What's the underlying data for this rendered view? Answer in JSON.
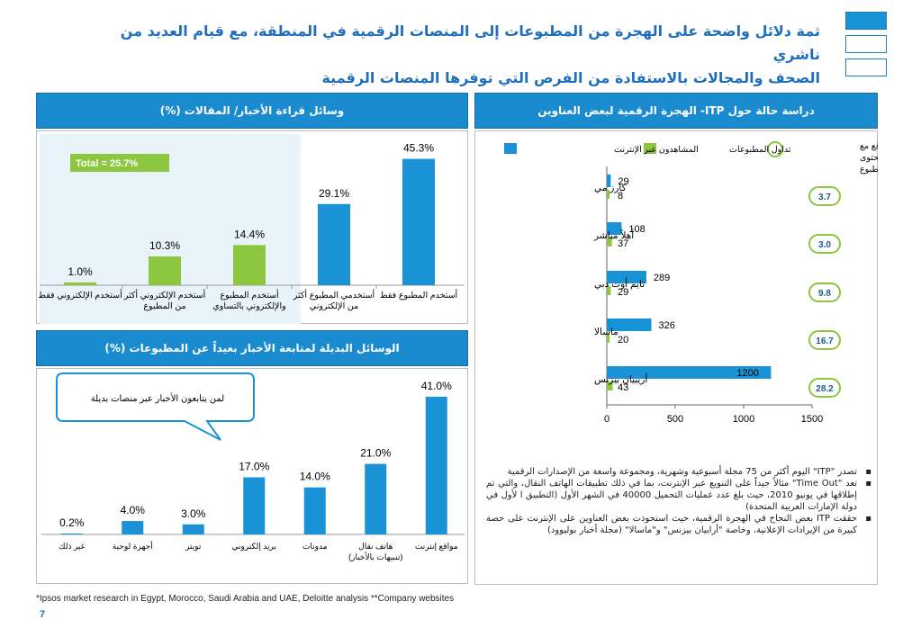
{
  "title": {
    "line1": "ثمة دلائل واضحة على الهجرة من المطبوعات إلى المنصات الرقمية في المنطقة، مع قيام العديد من ناشري",
    "line2": "الصحف والمجالات بالاستفادة من الفرص التي توفرها المنصات الرقمية"
  },
  "colors": {
    "blue": "#1a93d6",
    "green": "#8dc63f",
    "header": "#1a8bcf",
    "title": "#1f6fbd"
  },
  "panels": {
    "top_left_header": "وسائل قراءة الأخبار/ المقالات (%)",
    "bottom_left_header": "الوسائل البديلة لمتابعة الأخبار بعيداً عن المطبوعات (%)",
    "right_header": "دراسة حالة حول ITP- الهجرة الرقمية لبعض العناوين"
  },
  "chart_data": [
    {
      "type": "bar",
      "title": "وسائل قراءة الأخبار/ المقالات (%)",
      "categories": [
        "أستخدم الإلكتروني فقط",
        "أستخدم الإلكتروني أكثر من المطبوع",
        "أستخدم المطبوع والإلكتروني بالتساوي",
        "أستخدمي المطبوع أكثر من الإلكتروني",
        "أستخدم المطبوع فقط"
      ],
      "category_lines": [
        [
          "أستخدم الإلكتروني فقط"
        ],
        [
          "أستخدم الإلكتروني أكثر",
          "من المطبوع"
        ],
        [
          "أستخدم المطبوع",
          "والإلكتروني بالتساوي"
        ],
        [
          "أستخدمي المطبوع أكثر",
          "من الإلكتروني"
        ],
        [
          "أستخدم المطبوع فقط"
        ]
      ],
      "values": [
        1.0,
        10.3,
        14.4,
        29.1,
        45.3
      ],
      "value_labels": [
        "1.0%",
        "10.3%",
        "14.4%",
        "29.1%",
        "45.3%"
      ],
      "bar_colors": [
        "green",
        "green",
        "green",
        "blue",
        "blue"
      ],
      "annotation": "Total = 25.7%",
      "ylim": [
        0,
        50
      ]
    },
    {
      "type": "bar",
      "title": "الوسائل البديلة لمتابعة الأخبار بعيداً عن المطبوعات (%)",
      "categories": [
        "غير ذلك",
        "أجهزة لوحية",
        "تويتر",
        "بريد إلكتروني",
        "مدونات",
        "هاتف نقال (تنبيهات بالأخبار)",
        "مواقع إنترنت"
      ],
      "category_lines": [
        [
          "غير ذلك"
        ],
        [
          "أجهزة لوحية"
        ],
        [
          "تويتر"
        ],
        [
          "بريد إلكتروني"
        ],
        [
          "مدونات"
        ],
        [
          "هاتف نقال",
          "(تنبيهات بالأخبار)"
        ],
        [
          "مواقع إنترنت"
        ]
      ],
      "values": [
        0.2,
        4.0,
        3.0,
        17.0,
        14.0,
        21.0,
        41.0
      ],
      "value_labels": [
        "0.2%",
        "4.0%",
        "3.0%",
        "17.0%",
        "14.0%",
        "21.0%",
        "41.0%"
      ],
      "callout": "لمن يتابعون الأخبار عبر منصات بديلة",
      "ylim": [
        0,
        45
      ]
    },
    {
      "type": "bar",
      "orientation": "horizontal",
      "title": "دراسة حالة حول ITP- الهجرة الرقمية لبعض العناوين",
      "categories": [
        "كارز مي",
        "أهلاً مباشر",
        "تايم أوت دبي",
        "ماسالا",
        "أريبيان بيزنس"
      ],
      "series": [
        {
          "name": "المشاهدون عبر الإنترنت",
          "values": [
            29,
            108,
            289,
            326,
            1200
          ]
        },
        {
          "name": "تداول المطبوعات",
          "values": [
            8,
            37,
            29,
            20,
            43
          ]
        }
      ],
      "ratio_legend": "نسبة زوار الموقع مع تداول المحتوى المطبوع",
      "ratios": [
        "3.7",
        "3.0",
        "9.8",
        "16.7",
        "28.2"
      ],
      "xlim": [
        0,
        1500
      ],
      "xticks": [
        "0",
        "500",
        "1000",
        "1500"
      ]
    }
  ],
  "bullets": [
    "تصدر \"ITP\" اليوم أكثر من 75 مجلة أسبوعية وشهرية، ومجموعة واسعة من الإصدارات الرقمية",
    "تعد \"Time Out\" مثالاً جيداً على التنويع عبر الإنترنت، بما في ذلك تطبيقات الهاتف النقال، والتي تم إطلاقها في يونيو 2010، حيث بلغ عدد عمليات التحميل 40000 في الشهر الأول (التطبيق ا لأول في دولة الإمارات العربية المتحدة)",
    "حققت ITP بعض النجاح في الهجرة الرقمية، حيث استحوذت بعض العناوين على الإنترنت على حصة كبيرة من الإيرادات الإعلانية، وخاصة \"أرابيان بيزنس\" و\"ماسالا\" (مجلة أخبار بوليوود)"
  ],
  "footnote": "*Ipsos market research in Egypt, Morocco, Saudi Arabia and UAE, Deloitte analysis  **Company websites",
  "page_number": "7"
}
